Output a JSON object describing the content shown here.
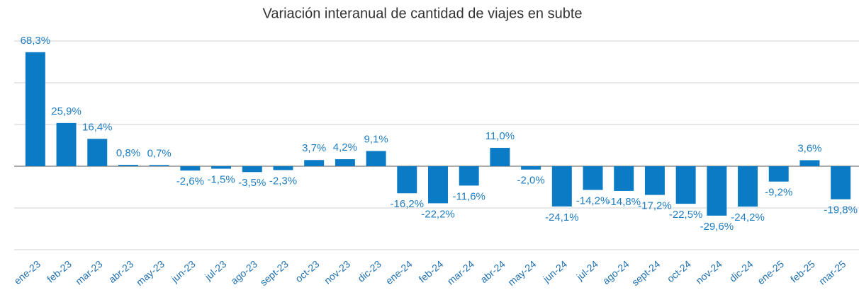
{
  "chart_data": {
    "type": "bar",
    "title": "Variación interanual de cantidad de viajes en subte",
    "categories": [
      "ene-23",
      "feb-23",
      "mar-23",
      "abr-23",
      "may-23",
      "jun-23",
      "jul-23",
      "ago-23",
      "sept-23",
      "oct-23",
      "nov-23",
      "dic-23",
      "ene-24",
      "feb-24",
      "mar-24",
      "abr-24",
      "may-24",
      "jun-24",
      "jul-24",
      "ago-24",
      "sept-24",
      "oct-24",
      "nov-24",
      "dic-24",
      "ene-25",
      "feb-25",
      "mar-25"
    ],
    "values": [
      68.3,
      25.9,
      16.4,
      0.8,
      0.7,
      -2.6,
      -1.5,
      -3.5,
      -2.3,
      3.7,
      4.2,
      9.1,
      -16.2,
      -22.2,
      -11.6,
      11.0,
      -2.0,
      -24.1,
      -14.2,
      -14.8,
      -17.2,
      -22.5,
      -29.6,
      -24.2,
      -9.2,
      3.6,
      -19.8
    ],
    "value_labels": [
      "68,3%",
      "25,9%",
      "16,4%",
      "0,8%",
      "0,7%",
      "-2,6%",
      "-1,5%",
      "-3,5%",
      "-2,3%",
      "3,7%",
      "4,2%",
      "9,1%",
      "-16,2%",
      "-22,2%",
      "-11,6%",
      "11,0%",
      "-2,0%",
      "-24,1%",
      "-14,2%",
      "-14,8%",
      "-17,2%",
      "-22,5%",
      "-29,6%",
      "-24,2%",
      "-9,2%",
      "3,6%",
      "-19,8%"
    ],
    "color": "#0b7bc6",
    "ylim": [
      -50,
      75
    ],
    "yticks": [
      -50,
      -25,
      0,
      25,
      50,
      75
    ],
    "grid": true
  }
}
